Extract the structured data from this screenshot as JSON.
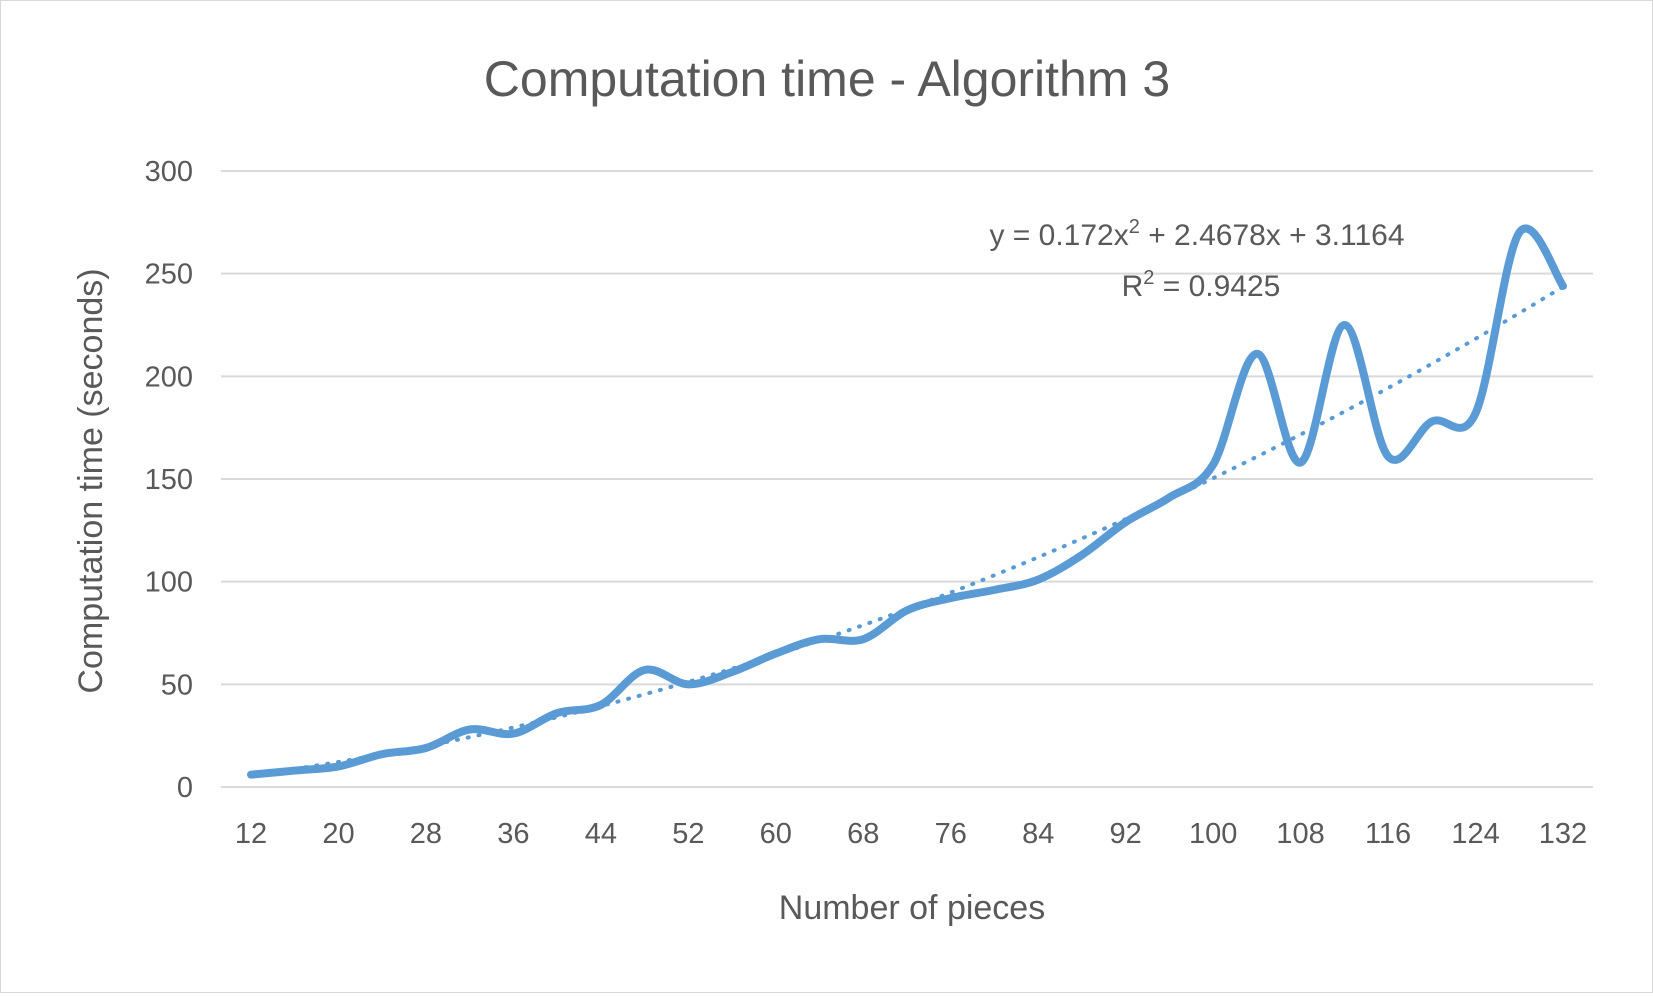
{
  "chart_data": {
    "type": "line",
    "title": "Computation time - Algorithm 3",
    "xlabel": "Number of pieces",
    "ylabel": "Computation time (seconds)",
    "ylim": [
      0,
      300
    ],
    "yticks": [
      "0",
      "50",
      "100",
      "150",
      "200",
      "250",
      "300"
    ],
    "xticks": [
      "12",
      "20",
      "28",
      "36",
      "44",
      "52",
      "60",
      "68",
      "76",
      "84",
      "92",
      "100",
      "108",
      "116",
      "124",
      "132"
    ],
    "grid": true,
    "smoothed": true,
    "series": [
      {
        "x": [
          12,
          16,
          20,
          24,
          28,
          32,
          36,
          40,
          44,
          48,
          52,
          56,
          60,
          64,
          68,
          72,
          76,
          80,
          84,
          88,
          92,
          96,
          100,
          104,
          108,
          112,
          116,
          120,
          124,
          128,
          132
        ],
        "values": [
          6,
          8,
          10,
          16,
          19,
          28,
          26,
          36,
          40,
          57,
          50,
          56,
          65,
          72,
          72,
          86,
          92,
          96,
          101,
          113,
          129,
          141,
          157,
          211,
          158,
          225,
          161,
          178,
          182,
          270,
          244
        ],
        "color": "#5b9bd5"
      }
    ],
    "trendline": {
      "type": "polynomial",
      "order": 2,
      "style": "dotted",
      "color": "#5b9bd5",
      "equation_prefix": "y = 0.172x",
      "equation_sup": "2",
      "equation_suffix": " + 2.4678x + 3.1164",
      "r2_prefix": "R",
      "r2_sup": "2",
      "r2_suffix": " = 0.9425"
    }
  }
}
